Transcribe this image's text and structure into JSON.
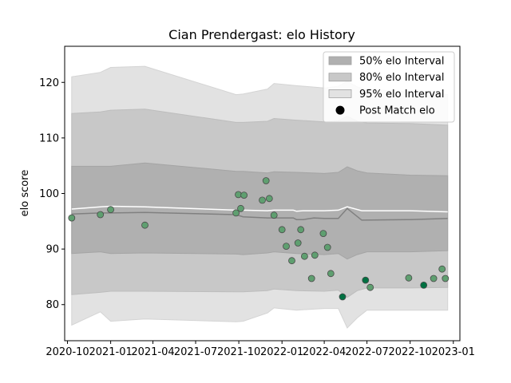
{
  "chart_data": {
    "type": "line",
    "title": "Cian Prendergast: elo History",
    "xlabel": "",
    "ylabel": "elo score",
    "xlim": [
      "2020-09-25",
      "2023-01-15"
    ],
    "ylim": [
      73.5,
      126.5
    ],
    "x_ticks": [
      "2020-10",
      "2021-01",
      "2021-04",
      "2021-07",
      "2021-10",
      "2022-01",
      "2022-04",
      "2022-07",
      "2022-10",
      "2023-01"
    ],
    "y_ticks": [
      80,
      90,
      100,
      110,
      120
    ],
    "grid": false,
    "legend_position": "top-right",
    "legend": [
      {
        "label": "50% elo Interval",
        "swatch": "band",
        "color": "#b0b0b0"
      },
      {
        "label": "80% elo Interval",
        "swatch": "band",
        "color": "#c8c8c8"
      },
      {
        "label": "95% elo Interval",
        "swatch": "band",
        "color": "#e2e2e2"
      },
      {
        "label": "Post Match elo",
        "swatch": "dot",
        "color": "#000000"
      }
    ],
    "bands": {
      "x": [
        "2020-10-10",
        "2020-12-10",
        "2021-01-01",
        "2021-03-15",
        "2021-09-25",
        "2021-10-10",
        "2021-12-01",
        "2021-12-15",
        "2022-02-01",
        "2022-04-01",
        "2022-05-01",
        "2022-05-20",
        "2022-06-10",
        "2022-07-01",
        "2022-10-01",
        "2022-12-20"
      ],
      "p95_upper": [
        121.0,
        121.8,
        122.7,
        122.9,
        117.8,
        117.9,
        118.8,
        119.8,
        119.4,
        119.0,
        119.3,
        120.2,
        119.2,
        118.7,
        118.3,
        117.8
      ],
      "p80_upper": [
        114.4,
        114.7,
        115.0,
        115.2,
        112.8,
        112.8,
        113.0,
        113.5,
        113.2,
        112.9,
        113.1,
        113.9,
        113.0,
        112.7,
        112.6,
        112.3
      ],
      "p50_upper": [
        104.9,
        104.9,
        104.9,
        105.5,
        104.0,
        104.0,
        103.7,
        103.9,
        103.8,
        103.6,
        103.8,
        104.8,
        104.1,
        103.7,
        103.3,
        103.2
      ],
      "p50_lower": [
        89.2,
        89.5,
        89.2,
        89.3,
        89.1,
        89.0,
        89.3,
        89.5,
        89.2,
        89.0,
        89.2,
        88.2,
        89.0,
        89.5,
        89.5,
        89.7
      ],
      "p80_lower": [
        81.8,
        82.2,
        82.4,
        82.4,
        82.3,
        82.3,
        82.5,
        82.8,
        82.5,
        82.4,
        82.6,
        81.3,
        82.5,
        83.0,
        83.0,
        83.1
      ],
      "p95_lower": [
        76.3,
        78.7,
        77.0,
        77.4,
        76.9,
        77.0,
        78.5,
        79.4,
        79.0,
        79.3,
        79.3,
        75.8,
        77.6,
        79.0,
        79.0,
        79.0
      ]
    },
    "series": [
      {
        "name": "mean",
        "color": "#ffffff",
        "x": [
          "2020-10-10",
          "2020-12-10",
          "2021-01-01",
          "2021-03-15",
          "2021-09-25",
          "2021-10-10",
          "2021-12-01",
          "2021-12-15",
          "2022-01-25",
          "2022-02-01",
          "2022-02-15",
          "2022-04-01",
          "2022-05-01",
          "2022-05-20",
          "2022-06-20",
          "2022-10-01",
          "2022-12-20"
        ],
        "values": [
          97.2,
          97.6,
          97.7,
          97.6,
          97.0,
          97.0,
          96.9,
          97.0,
          97.0,
          96.8,
          96.9,
          96.9,
          97.0,
          97.6,
          96.9,
          96.9,
          96.7
        ]
      },
      {
        "name": "median",
        "color": "#808080",
        "x": [
          "2020-10-10",
          "2020-12-10",
          "2021-01-01",
          "2021-03-15",
          "2021-09-25",
          "2021-10-10",
          "2021-12-01",
          "2021-12-15",
          "2022-01-25",
          "2022-02-01",
          "2022-02-15",
          "2022-03-10",
          "2022-04-01",
          "2022-05-01",
          "2022-05-20",
          "2022-06-20",
          "2022-10-01",
          "2022-12-20"
        ],
        "values": [
          96.3,
          96.5,
          96.5,
          96.6,
          96.2,
          95.8,
          95.6,
          95.6,
          95.6,
          95.3,
          95.3,
          95.6,
          95.5,
          95.5,
          97.3,
          95.2,
          95.3,
          95.5
        ]
      }
    ],
    "points": {
      "name": "Post Match elo",
      "x": [
        "2020-10-10",
        "2020-12-10",
        "2021-01-01",
        "2021-03-15",
        "2021-09-25",
        "2021-09-30",
        "2021-10-05",
        "2021-10-12",
        "2021-11-20",
        "2021-11-28",
        "2021-12-05",
        "2021-12-15",
        "2022-01-01",
        "2022-01-10",
        "2022-01-22",
        "2022-02-04",
        "2022-02-10",
        "2022-02-18",
        "2022-03-05",
        "2022-03-12",
        "2022-03-30",
        "2022-04-08",
        "2022-04-15",
        "2022-05-10",
        "2022-06-28",
        "2022-07-08",
        "2022-09-28",
        "2022-10-30",
        "2022-11-20",
        "2022-12-08",
        "2022-12-15"
      ],
      "values": [
        95.6,
        96.2,
        97.1,
        94.3,
        96.5,
        99.8,
        97.3,
        99.7,
        98.8,
        102.3,
        99.1,
        96.1,
        93.5,
        90.5,
        87.9,
        91.1,
        93.5,
        88.7,
        84.7,
        88.9,
        92.8,
        90.3,
        85.6,
        81.4,
        84.4,
        83.1,
        84.8,
        83.5,
        84.7,
        86.4,
        84.7
      ],
      "highlight": [
        false,
        false,
        false,
        false,
        false,
        false,
        false,
        false,
        false,
        false,
        false,
        false,
        false,
        false,
        false,
        false,
        false,
        false,
        false,
        false,
        false,
        false,
        false,
        true,
        true,
        false,
        false,
        true,
        false,
        false,
        false
      ],
      "color": "#5f9f70",
      "highlight_color": "#007041"
    }
  }
}
